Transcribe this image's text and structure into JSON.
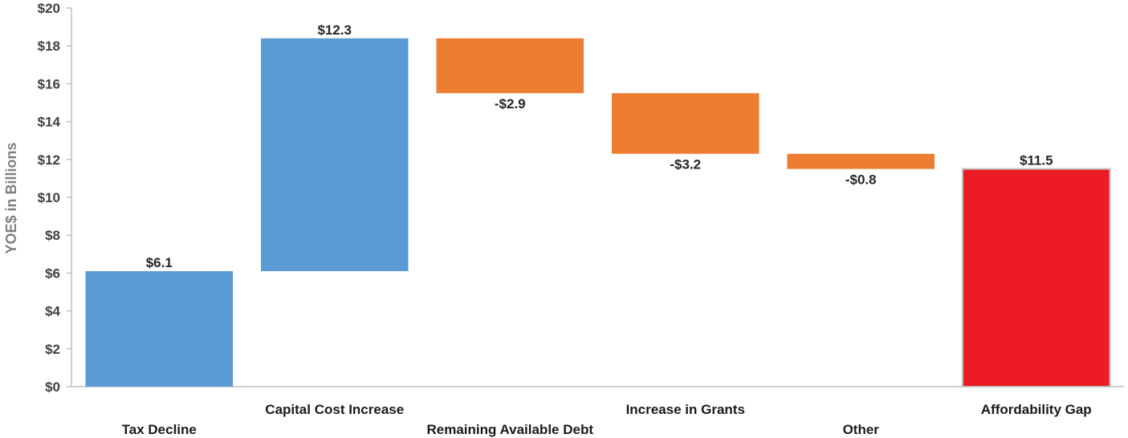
{
  "chart_data": {
    "type": "bar",
    "subtype": "waterfall",
    "title": "",
    "xlabel": "",
    "ylabel": "YOE$ in Billions",
    "ylim": [
      0,
      20
    ],
    "yticks": [
      0,
      2,
      4,
      6,
      8,
      10,
      12,
      14,
      16,
      18,
      20
    ],
    "ytick_labels": [
      "$0",
      "$2",
      "$4",
      "$6",
      "$8",
      "$10",
      "$12",
      "$14",
      "$16",
      "$18",
      "$20"
    ],
    "grid": false,
    "legend": "none",
    "categories": [
      "Tax Decline",
      "Capital Cost Increase",
      "Remaining Available Debt",
      "Increase in Grants",
      "Other",
      "Affordability Gap"
    ],
    "bars": [
      {
        "category": "Tax Decline",
        "start": 0,
        "end": 6.1,
        "label": "$6.1",
        "kind": "increase",
        "color": "#5B9BD5"
      },
      {
        "category": "Capital Cost Increase",
        "start": 6.1,
        "end": 18.4,
        "label": "$12.3",
        "kind": "increase",
        "color": "#5B9BD5"
      },
      {
        "category": "Remaining Available Debt",
        "start": 18.4,
        "end": 15.5,
        "label": "-$2.9",
        "kind": "decrease",
        "color": "#ED7D31"
      },
      {
        "category": "Increase in Grants",
        "start": 15.5,
        "end": 12.3,
        "label": "-$3.2",
        "kind": "decrease",
        "color": "#ED7D31"
      },
      {
        "category": "Other",
        "start": 12.3,
        "end": 11.5,
        "label": "-$0.8",
        "kind": "decrease",
        "color": "#ED7D31"
      },
      {
        "category": "Affordability Gap",
        "start": 0,
        "end": 11.5,
        "label": "$11.5",
        "kind": "total",
        "color": "#ED1C24"
      }
    ]
  }
}
